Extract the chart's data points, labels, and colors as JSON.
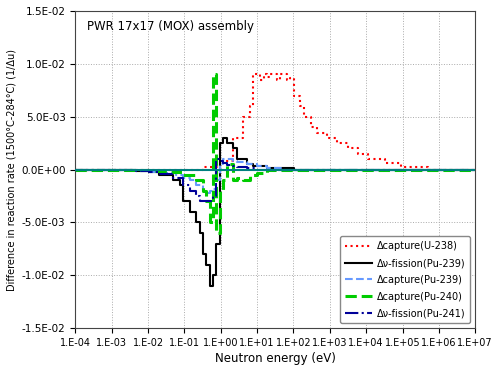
{
  "title": "PWR 17x17 (MOX) assembly",
  "xlabel": "Neutron energy (eV)",
  "ylabel": "Difference in reaction rate (1500°C-284°C) (1/Δu)",
  "xlim": [
    0.0001,
    10000000.0
  ],
  "ylim": [
    -0.015,
    0.015
  ],
  "yticks": [
    -0.015,
    -0.01,
    -0.005,
    0.0,
    0.005,
    0.01,
    0.015
  ],
  "ytick_labels": [
    "-1.5E-02",
    "-1.0E-02",
    "-5.0E-03",
    "0.0E+00",
    "5.0E-03",
    "1.0E-02",
    "1.5E-02"
  ],
  "xtick_labels": [
    "1.E-04",
    "1.E-03",
    "1.E-02",
    "1.E-01",
    "1.E+00",
    "1.E+01",
    "1.E+02",
    "1.E+03",
    "1.E+04",
    "1.E+05",
    "1.E+06",
    "1.E+07"
  ],
  "xtick_values": [
    0.0001,
    0.001,
    0.01,
    0.1,
    1.0,
    10.0,
    100.0,
    1000.0,
    10000.0,
    100000.0,
    1000000.0,
    10000000.0
  ],
  "legend": [
    {
      "label": "Δcapture(U-238)",
      "color": "#ff0000",
      "linestyle": "dotted",
      "linewidth": 1.5
    },
    {
      "label": "Δν-fission(Pu-239)",
      "color": "#000000",
      "linestyle": "solid",
      "linewidth": 1.5
    },
    {
      "label": "Δcapture(Pu-239)",
      "color": "#6699ff",
      "linestyle": "dashed",
      "linewidth": 1.5
    },
    {
      "label": "Δcapture(Pu-240)",
      "color": "#00cc00",
      "linestyle": "dashed",
      "linewidth": 2.2
    },
    {
      "label": "Δν-fission(Pu-241)",
      "color": "#000099",
      "linestyle": "dashdot",
      "linewidth": 1.5
    }
  ],
  "zero_line_color": "#008080",
  "background_color": "#ffffff",
  "grid_color": "#aaaaaa"
}
